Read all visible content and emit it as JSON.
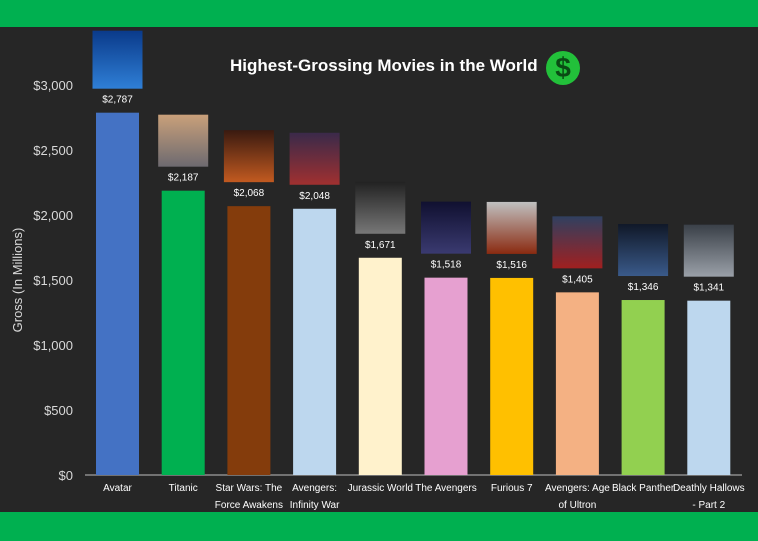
{
  "chart_data": {
    "type": "bar",
    "title": "Highest-Grossing Movies in the World",
    "title_icon": "dollar-sign-icon",
    "ylabel": "Gross (In Millions)",
    "xlabel": "",
    "ylim": [
      0,
      3000
    ],
    "yticks": [
      0,
      500,
      1000,
      1500,
      2000,
      2500,
      3000
    ],
    "ytick_labels": [
      "$0",
      "$500",
      "$1,000",
      "$1,500",
      "$2,000",
      "$2,500",
      "$3,000"
    ],
    "grid": false,
    "legend": "none",
    "categories": [
      "Avatar",
      "Titanic",
      "Star Wars: The Force Awakens",
      "Avengers: Infinity War",
      "Jurassic World",
      "The Avengers",
      "Furious 7",
      "Avengers: Age of Ultron",
      "Black Panther",
      "Deathly Hallows - Part 2"
    ],
    "category_lines": [
      [
        "Avatar"
      ],
      [
        "Titanic"
      ],
      [
        "Star Wars: The",
        "Force Awakens"
      ],
      [
        "Avengers:",
        "Infinity War"
      ],
      [
        "Jurassic World"
      ],
      [
        "The Avengers"
      ],
      [
        "Furious 7"
      ],
      [
        "Avengers: Age",
        "of Ultron"
      ],
      [
        "Black Panther"
      ],
      [
        "Deathly Hallows",
        "- Part 2"
      ]
    ],
    "values": [
      2787,
      2187,
      2068,
      2048,
      1671,
      1518,
      1516,
      1405,
      1346,
      1341
    ],
    "data_labels": [
      "$2,787",
      "$2,187",
      "$2,068",
      "$2,048",
      "$1,671",
      "$1,518",
      "$1,516",
      "$1,405",
      "$1,346",
      "$1,341"
    ],
    "colors": [
      "#4472c4",
      "#00b050",
      "#843c0c",
      "#bdd7ee",
      "#fff2cc",
      "#e6a0d0",
      "#ffc000",
      "#f4b183",
      "#92d050",
      "#bdd7ee"
    ],
    "poster_colors": [
      [
        "#0a3a8a",
        "#2f7fd6"
      ],
      [
        "#c9a07a",
        "#6d6a70"
      ],
      [
        "#3a1a10",
        "#c25a20"
      ],
      [
        "#3a2a4a",
        "#a03030"
      ],
      [
        "#222",
        "#777"
      ],
      [
        "#101030",
        "#3a3a70"
      ],
      [
        "#c0c0c0",
        "#8a2a10"
      ],
      [
        "#304060",
        "#a02020"
      ],
      [
        "#101828",
        "#3a5a8a"
      ],
      [
        "#3a4048",
        "#9aa0a8"
      ]
    ]
  },
  "colors": {
    "band": "#00b050",
    "background": "#262626"
  }
}
